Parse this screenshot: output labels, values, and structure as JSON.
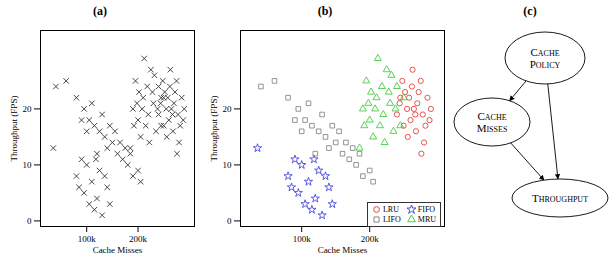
{
  "chart_data": [
    {
      "type": "scatter",
      "title": "(a)",
      "x_label": "Cache Misses",
      "y_label": "Throughput (FPS)",
      "xlim": [
        10000,
        310000
      ],
      "ylim": [
        -1,
        34
      ],
      "xticks": [
        {
          "value": 100000,
          "label": "100k"
        },
        {
          "value": 200000,
          "label": "200k"
        }
      ],
      "yticks": [
        0,
        10,
        20
      ],
      "marker": "times",
      "color": "#333333",
      "x": [
        245000,
        255000,
        262000,
        270000,
        278000,
        285000,
        250000,
        260000,
        268000,
        275000,
        282000,
        290000,
        240000,
        258000,
        265000,
        272000,
        280000,
        248000,
        256000,
        288000,
        263000,
        244000,
        276000,
        267000,
        252000,
        190000,
        200000,
        210000,
        220000,
        230000,
        240000,
        195000,
        205000,
        215000,
        225000,
        235000,
        185000,
        212000,
        228000,
        198000,
        218000,
        245000,
        208000,
        238000,
        222000,
        192000,
        232000,
        202000,
        250000,
        60000,
        80000,
        95000,
        105000,
        115000,
        125000,
        135000,
        140000,
        150000,
        160000,
        170000,
        180000,
        190000,
        200000,
        110000,
        130000,
        145000,
        155000,
        165000,
        175000,
        120000,
        100000,
        185000,
        205000,
        90000,
        40000,
        35000,
        80000,
        95000,
        105000,
        110000,
        120000,
        125000,
        130000,
        100000,
        140000,
        115000,
        90000,
        135000,
        145000,
        85000,
        118000
      ],
      "y": [
        22,
        20,
        24,
        21,
        19,
        22,
        17,
        18,
        16,
        25,
        17,
        20,
        19,
        22,
        20,
        23,
        14,
        25,
        15,
        18,
        27,
        21,
        12,
        19,
        23,
        20,
        18,
        22,
        19,
        21,
        24,
        25,
        15,
        17,
        27,
        16,
        13,
        29,
        23,
        21,
        24,
        17,
        20,
        20,
        14,
        17,
        26,
        23,
        22,
        25,
        22,
        20,
        18,
        17,
        16,
        15,
        13,
        14,
        12,
        11,
        10,
        8,
        9,
        21,
        19,
        17,
        16,
        14,
        13,
        12,
        16,
        12,
        7,
        18,
        24,
        13,
        8,
        5,
        3,
        7,
        4,
        9,
        1,
        10,
        6,
        2,
        11,
        8,
        3,
        6,
        11
      ]
    },
    {
      "type": "scatter",
      "title": "(b)",
      "x_label": "Cache Misses",
      "y_label": "Throughput (FPS)",
      "xlim": [
        10000,
        310000
      ],
      "ylim": [
        -1,
        34
      ],
      "xticks": [
        {
          "value": 100000,
          "label": "100k"
        },
        {
          "value": 200000,
          "label": "200k"
        }
      ],
      "yticks": [
        0,
        10,
        20
      ],
      "legend": "lower right",
      "series": [
        {
          "name": "LRU",
          "color": "#e8403a",
          "marker": "circle",
          "x": [
            245000,
            255000,
            262000,
            270000,
            278000,
            285000,
            250000,
            260000,
            268000,
            275000,
            282000,
            290000,
            240000,
            258000,
            265000,
            272000,
            280000,
            248000,
            256000,
            288000,
            263000,
            244000,
            276000,
            267000,
            252000
          ],
          "y": [
            22,
            20,
            24,
            21,
            19,
            22,
            17,
            18,
            16,
            25,
            17,
            20,
            19,
            22,
            20,
            23,
            14,
            25,
            15,
            18,
            27,
            21,
            12,
            19,
            23
          ]
        },
        {
          "name": "FIFO",
          "color": "#4a4ae0",
          "marker": "star",
          "x": [
            35000,
            80000,
            95000,
            105000,
            110000,
            120000,
            125000,
            130000,
            100000,
            140000,
            115000,
            90000,
            135000,
            145000,
            85000,
            118000
          ],
          "y": [
            13,
            8,
            5,
            3,
            7,
            4,
            9,
            1,
            10,
            6,
            2,
            11,
            8,
            3,
            6,
            11
          ]
        },
        {
          "name": "LIFO",
          "color": "#888888",
          "marker": "square",
          "x": [
            60000,
            80000,
            95000,
            105000,
            115000,
            125000,
            135000,
            140000,
            150000,
            160000,
            170000,
            180000,
            190000,
            200000,
            110000,
            130000,
            145000,
            155000,
            165000,
            175000,
            120000,
            100000,
            185000,
            205000,
            90000,
            40000
          ],
          "y": [
            25,
            22,
            20,
            18,
            17,
            16,
            15,
            13,
            14,
            12,
            11,
            10,
            8,
            9,
            21,
            19,
            17,
            16,
            14,
            13,
            12,
            16,
            12,
            7,
            18,
            24
          ]
        },
        {
          "name": "MRU",
          "color": "#44cc44",
          "marker": "triangle",
          "x": [
            190000,
            200000,
            210000,
            220000,
            230000,
            240000,
            195000,
            205000,
            215000,
            225000,
            235000,
            185000,
            212000,
            228000,
            198000,
            218000,
            245000,
            208000,
            238000,
            222000,
            192000,
            232000,
            202000,
            250000
          ],
          "y": [
            20,
            18,
            22,
            19,
            21,
            24,
            25,
            15,
            17,
            27,
            16,
            13,
            29,
            23,
            21,
            24,
            17,
            20,
            20,
            14,
            17,
            26,
            23,
            22
          ]
        }
      ]
    }
  ],
  "diagram": {
    "title": "(c)",
    "nodes": [
      {
        "label": "Cache Policy"
      },
      {
        "label": "Cache Misses"
      },
      {
        "label": "Throughput"
      }
    ],
    "edges": [
      {
        "from": "Cache Policy",
        "to": "Cache Misses"
      },
      {
        "from": "Cache Policy",
        "to": "Throughput"
      },
      {
        "from": "Cache Misses",
        "to": "Throughput"
      }
    ]
  }
}
